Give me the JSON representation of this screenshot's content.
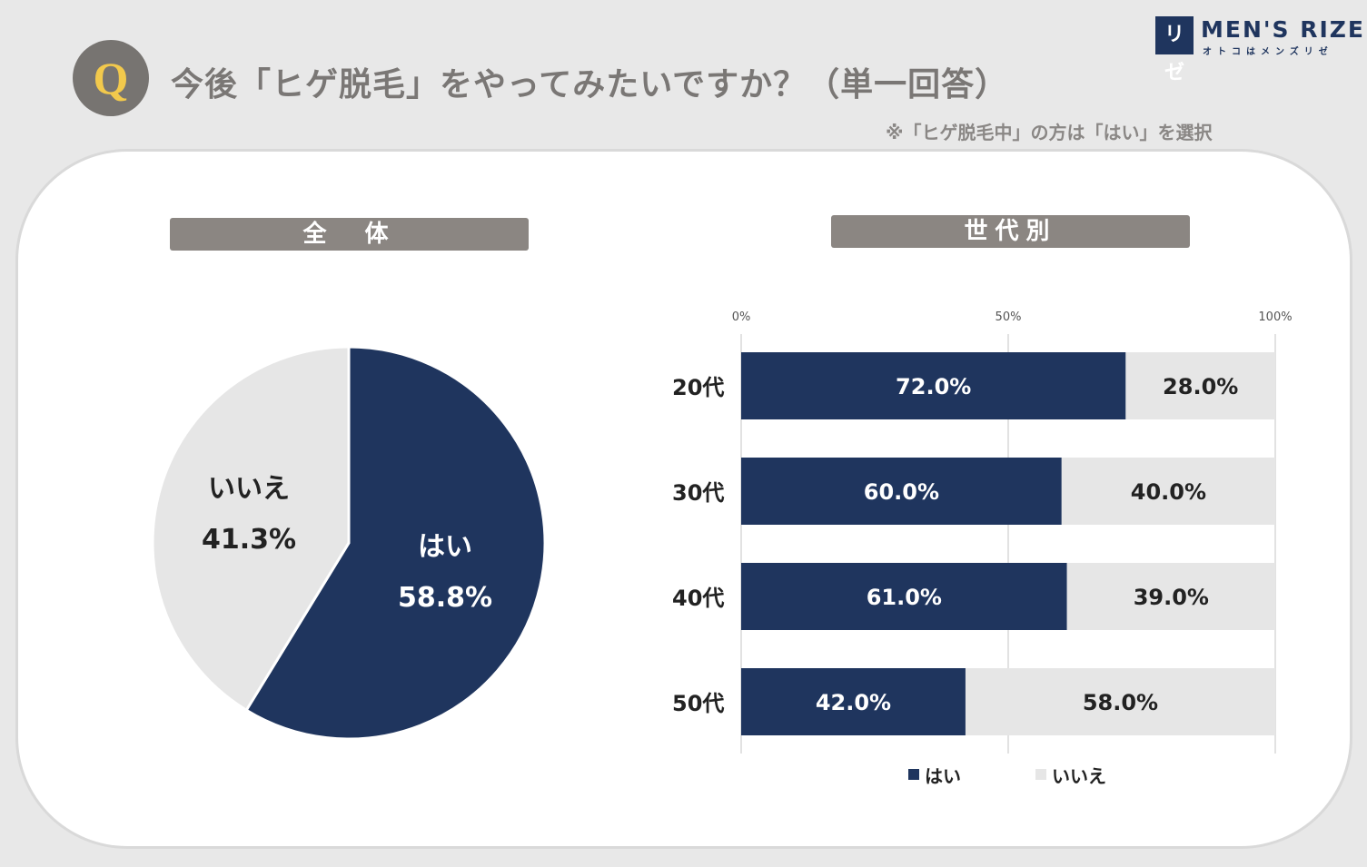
{
  "header": {
    "badge": "Q",
    "question": "今後「ヒゲ脱毛」をやってみたいですか？（単一回答）",
    "note": "※「ヒゲ脱毛中」の方は「はい」を選択"
  },
  "logo": {
    "mark": "リゼ",
    "name": "MEN'S RIZE",
    "sub": "オトコはメンズリゼ"
  },
  "colors": {
    "yes": "#1f355e",
    "no": "#e6e6e6"
  },
  "chart_data": [
    {
      "type": "pie",
      "title": "全　体",
      "slices": [
        {
          "label": "はい",
          "value": 58.8,
          "display": "58.8%"
        },
        {
          "label": "いいえ",
          "value": 41.3,
          "display": "41.3%"
        }
      ]
    },
    {
      "type": "bar",
      "orientation": "horizontal",
      "stacked": true,
      "title": "世代別",
      "categories": [
        "20代",
        "30代",
        "40代",
        "50代"
      ],
      "xlim": [
        0,
        100
      ],
      "ticks": [
        "0%",
        "50%",
        "100%"
      ],
      "tick_values": [
        0,
        50,
        100
      ],
      "series": [
        {
          "name": "はい",
          "values": [
            72.0,
            60.0,
            61.0,
            42.0
          ],
          "labels": [
            "72.0%",
            "60.0%",
            "61.0%",
            "42.0%"
          ]
        },
        {
          "name": "いいえ",
          "values": [
            28.0,
            40.0,
            39.0,
            58.0
          ],
          "labels": [
            "28.0%",
            "40.0%",
            "39.0%",
            "58.0%"
          ]
        }
      ],
      "legend": [
        "はい",
        "いいえ"
      ],
      "legend_position": "bottom"
    }
  ]
}
